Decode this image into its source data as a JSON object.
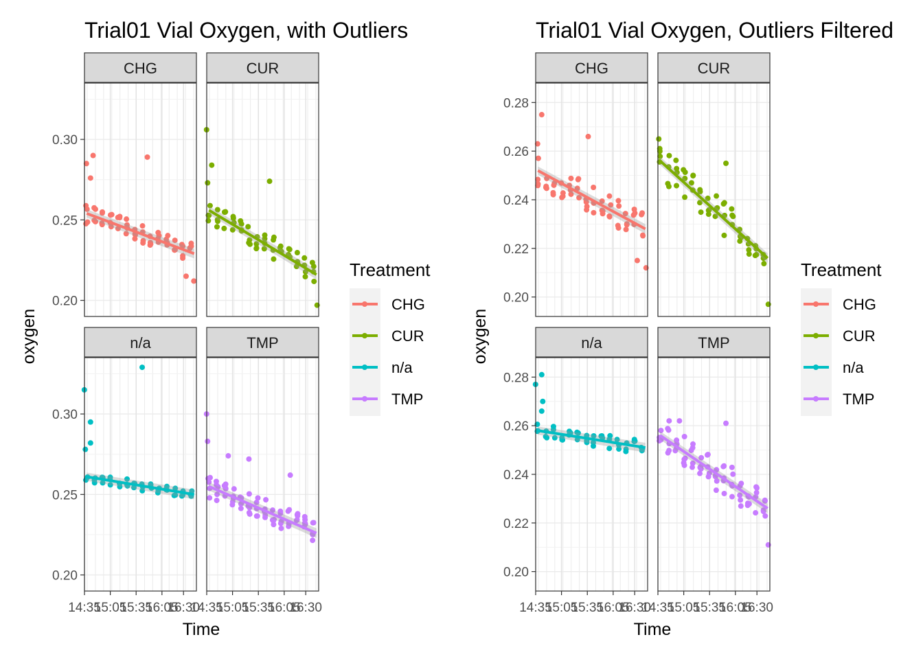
{
  "colors": {
    "CHG": "#F8766D",
    "CUR": "#7CAE00",
    "n/a": "#00BFC4",
    "TMP": "#C77CFF"
  },
  "legend": {
    "title": "Treatment",
    "items": [
      {
        "label": "CHG",
        "key": "CHG"
      },
      {
        "label": "CUR",
        "key": "CUR"
      },
      {
        "label": "n/a",
        "key": "n/a"
      },
      {
        "label": "TMP",
        "key": "TMP"
      }
    ]
  },
  "chart_data": [
    {
      "type": "scatter",
      "title": "Trial01 Vial Oxygen, with Outliers",
      "xlabel": "Time",
      "ylabel": "oxygen",
      "xlim": [
        14.583,
        16.75
      ],
      "ylim": [
        0.19,
        0.335
      ],
      "x_ticks": [
        {
          "value": 14.583,
          "label": "14:35"
        },
        {
          "value": 15.083,
          "label": "15:05"
        },
        {
          "value": 15.583,
          "label": "15:35"
        },
        {
          "value": 16.083,
          "label": "16:05"
        },
        {
          "value": 16.5,
          "label": "16:30"
        }
      ],
      "y_ticks": [
        0.2,
        0.25,
        0.3
      ],
      "facets": [
        {
          "name": "CHG",
          "fit": {
            "y_start": 0.254,
            "y_end": 0.229
          },
          "n": 55,
          "spread": 0.006,
          "outliers": [
            [
              14.62,
              0.285
            ],
            [
              14.75,
              0.29
            ],
            [
              15.8,
              0.289
            ],
            [
              14.7,
              0.276
            ],
            [
              16.55,
              0.215
            ],
            [
              16.7,
              0.212
            ]
          ]
        },
        {
          "name": "CUR",
          "fit": {
            "y_start": 0.256,
            "y_end": 0.216
          },
          "n": 60,
          "spread": 0.007,
          "outliers": [
            [
              14.58,
              0.306
            ],
            [
              14.68,
              0.284
            ],
            [
              14.6,
              0.273
            ],
            [
              15.8,
              0.274
            ],
            [
              16.72,
              0.197
            ]
          ]
        },
        {
          "name": "n/a",
          "fit": {
            "y_start": 0.261,
            "y_end": 0.25
          },
          "n": 40,
          "spread": 0.003,
          "outliers": [
            [
              14.58,
              0.315
            ],
            [
              14.7,
              0.295
            ],
            [
              15.7,
              0.329
            ],
            [
              14.6,
              0.278
            ],
            [
              14.7,
              0.282
            ]
          ]
        },
        {
          "name": "TMP",
          "fit": {
            "y_start": 0.255,
            "y_end": 0.226
          },
          "n": 70,
          "spread": 0.007,
          "outliers": [
            [
              14.58,
              0.3
            ],
            [
              14.6,
              0.283
            ],
            [
              15.0,
              0.274
            ],
            [
              15.4,
              0.272
            ],
            [
              16.2,
              0.262
            ]
          ]
        }
      ]
    },
    {
      "type": "scatter",
      "title": "Trial01 Vial Oxygen, Outliers Filtered",
      "xlabel": "Time",
      "ylabel": "oxygen",
      "xlim": [
        14.583,
        16.75
      ],
      "ylim": [
        0.192,
        0.288
      ],
      "x_ticks": [
        {
          "value": 14.583,
          "label": "14:35"
        },
        {
          "value": 15.083,
          "label": "15:05"
        },
        {
          "value": 15.583,
          "label": "15:35"
        },
        {
          "value": 16.083,
          "label": "16:05"
        },
        {
          "value": 16.5,
          "label": "16:30"
        }
      ],
      "y_ticks": [
        0.2,
        0.22,
        0.24,
        0.26,
        0.28
      ],
      "facets": [
        {
          "name": "CHG",
          "fit": {
            "y_start": 0.252,
            "y_end": 0.228
          },
          "n": 55,
          "spread": 0.006,
          "outliers": [
            [
              14.7,
              0.275
            ],
            [
              14.62,
              0.263
            ],
            [
              15.6,
              0.266
            ],
            [
              16.55,
              0.215
            ],
            [
              16.72,
              0.212
            ]
          ]
        },
        {
          "name": "CUR",
          "fit": {
            "y_start": 0.256,
            "y_end": 0.216
          },
          "n": 60,
          "spread": 0.007,
          "outliers": [
            [
              14.6,
              0.265
            ],
            [
              15.9,
              0.255
            ],
            [
              16.72,
              0.197
            ]
          ]
        },
        {
          "name": "n/a",
          "fit": {
            "y_start": 0.258,
            "y_end": 0.251
          },
          "n": 40,
          "spread": 0.003,
          "outliers": [
            [
              14.58,
              0.277
            ],
            [
              14.7,
              0.281
            ],
            [
              14.72,
              0.27
            ],
            [
              14.7,
              0.266
            ]
          ]
        },
        {
          "name": "TMP",
          "fit": {
            "y_start": 0.256,
            "y_end": 0.226
          },
          "n": 70,
          "spread": 0.007,
          "outliers": [
            [
              14.8,
              0.262
            ],
            [
              15.0,
              0.262
            ],
            [
              15.9,
              0.261
            ],
            [
              16.72,
              0.211
            ]
          ]
        }
      ]
    }
  ]
}
